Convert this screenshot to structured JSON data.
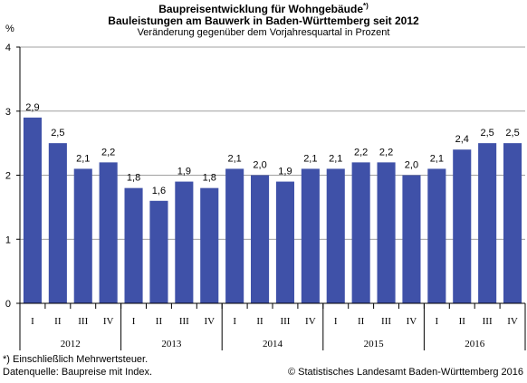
{
  "header": {
    "title_main": "Baupreisentwicklung für Wohngebäude",
    "title_mark": "*)",
    "title_line2": "Bauleistungen am Bauwerk in Baden-Württemberg seit 2012",
    "subtitle": "Veränderung gegenüber dem Vorjahresquartal in Prozent"
  },
  "footer": {
    "note": "*) Einschließlich Mehrwertsteuer.",
    "source": "Datenquelle: Baupreise mit Index.",
    "copyright": "© Statistisches Landesamt Baden-Württemberg 2016"
  },
  "colors": {
    "bar": "#3F51A8",
    "axis": "#000000",
    "grid": "#808080"
  },
  "chart_data": {
    "type": "bar",
    "title": "Baupreisentwicklung für Wohngebäude*)",
    "subtitle": "Bauleistungen am Bauwerk in Baden-Württemberg seit 2012 — Veränderung gegenüber dem Vorjahresquartal in Prozent",
    "ylabel": "%",
    "ylim": [
      0,
      4
    ],
    "yticks": [
      0,
      1,
      2,
      3,
      4
    ],
    "grid": true,
    "legend": "none",
    "categories": [
      "I",
      "II",
      "III",
      "IV",
      "I",
      "II",
      "III",
      "IV",
      "I",
      "II",
      "III",
      "IV",
      "I",
      "II",
      "III",
      "IV",
      "I",
      "II",
      "III",
      "IV"
    ],
    "years": [
      "2012",
      "2013",
      "2014",
      "2015",
      "2016"
    ],
    "values": [
      2.9,
      2.5,
      2.1,
      2.2,
      1.8,
      1.6,
      1.9,
      1.8,
      2.1,
      2.0,
      1.9,
      2.1,
      2.1,
      2.2,
      2.2,
      2.0,
      2.1,
      2.4,
      2.5,
      2.5
    ],
    "data_labels": [
      "2,9",
      "2,5",
      "2,1",
      "2,2",
      "1,8",
      "1,6",
      "1,9",
      "1,8",
      "2,1",
      "2,0",
      "1,9",
      "2,1",
      "2,1",
      "2,2",
      "2,2",
      "2,0",
      "2,1",
      "2,4",
      "2,5",
      "2,5"
    ]
  }
}
